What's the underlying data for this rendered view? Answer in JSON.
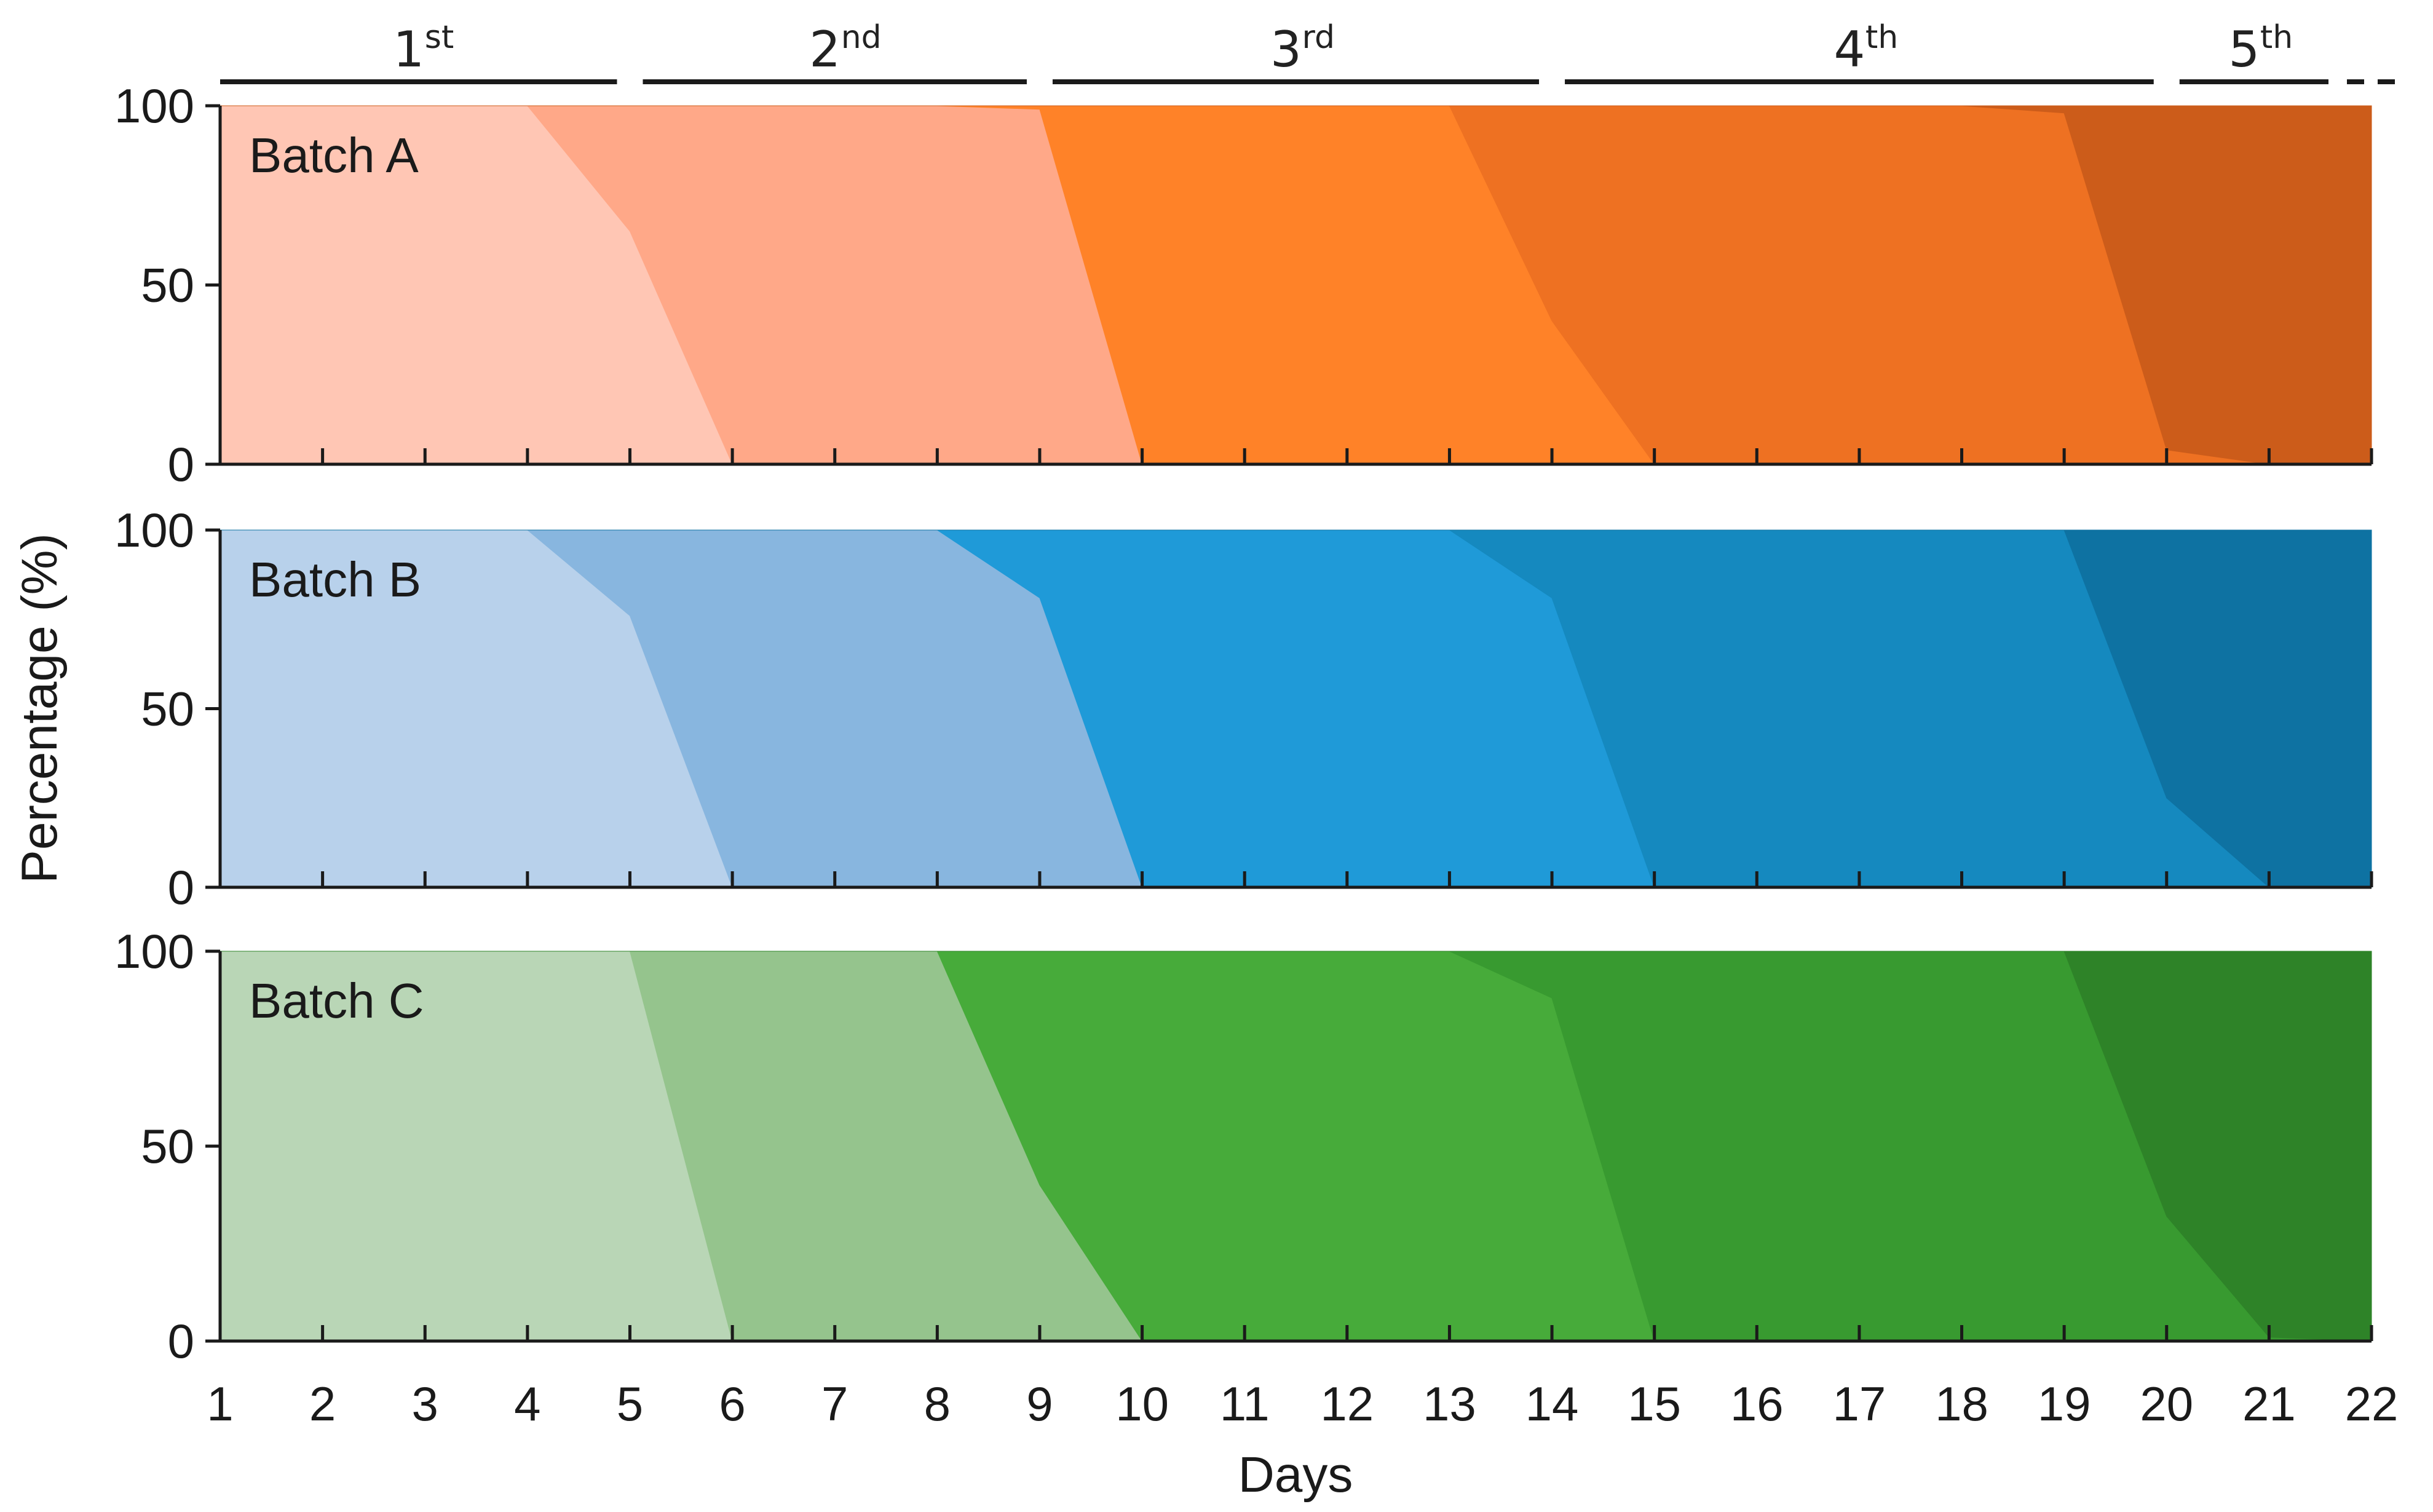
{
  "chart_data": {
    "type": "area",
    "stacked": true,
    "xlabel": "Days",
    "ylabel": "Percentage (%)",
    "x": [
      1,
      2,
      3,
      4,
      5,
      6,
      7,
      8,
      9,
      10,
      11,
      12,
      13,
      14,
      15,
      16,
      17,
      18,
      19,
      20,
      21,
      22
    ],
    "xlim": [
      1,
      22
    ],
    "ylim": [
      0,
      100
    ],
    "yticks": [
      0,
      50,
      100
    ],
    "grid": false,
    "stages": [
      {
        "label": "1",
        "suffix": "st",
        "from": 1,
        "to": 5
      },
      {
        "label": "2",
        "suffix": "nd",
        "from": 5,
        "to": 9
      },
      {
        "label": "3",
        "suffix": "rd",
        "from": 9,
        "to": 14
      },
      {
        "label": "4",
        "suffix": "th",
        "from": 14,
        "to": 20
      },
      {
        "label": "5",
        "suffix": "th",
        "from": 20,
        "to": 22,
        "continues": true
      }
    ],
    "panels": [
      {
        "label": "Batch A",
        "colors": [
          "#ffc6b4",
          "#ffa888",
          "#ff8228",
          "#ee7122",
          "#cc5c1a"
        ],
        "layers": [
          [
            100,
            100,
            100,
            100,
            65,
            0,
            0,
            0,
            0,
            0,
            0,
            0,
            0,
            0,
            0,
            0,
            0,
            0,
            0,
            0,
            0,
            0
          ],
          [
            0,
            0,
            0,
            0,
            35,
            100,
            100,
            100,
            99,
            0,
            0,
            0,
            0,
            0,
            0,
            0,
            0,
            0,
            0,
            0,
            0,
            0
          ],
          [
            0,
            0,
            0,
            0,
            0,
            0,
            0,
            0,
            1,
            100,
            100,
            100,
            100,
            40,
            0,
            0,
            0,
            0,
            0,
            0,
            0,
            0
          ],
          [
            0,
            0,
            0,
            0,
            0,
            0,
            0,
            0,
            0,
            0,
            0,
            0,
            0,
            60,
            100,
            100,
            100,
            100,
            98,
            4,
            0,
            0
          ],
          [
            0,
            0,
            0,
            0,
            0,
            0,
            0,
            0,
            0,
            0,
            0,
            0,
            0,
            0,
            0,
            0,
            0,
            0,
            2,
            96,
            100,
            100
          ]
        ]
      },
      {
        "label": "Batch B",
        "colors": [
          "#b8d1eb",
          "#88b6df",
          "#1f9ad8",
          "#1589bf",
          "#0e72a2"
        ],
        "layers": [
          [
            100,
            100,
            100,
            100,
            76,
            0,
            0,
            0,
            0,
            0,
            0,
            0,
            0,
            0,
            0,
            0,
            0,
            0,
            0,
            0,
            0,
            0
          ],
          [
            0,
            0,
            0,
            0,
            24,
            100,
            100,
            100,
            81,
            0,
            0,
            0,
            0,
            0,
            0,
            0,
            0,
            0,
            0,
            0,
            0,
            0
          ],
          [
            0,
            0,
            0,
            0,
            0,
            0,
            0,
            0,
            19,
            100,
            100,
            100,
            100,
            81,
            0,
            0,
            0,
            0,
            0,
            0,
            0,
            0
          ],
          [
            0,
            0,
            0,
            0,
            0,
            0,
            0,
            0,
            0,
            0,
            0,
            0,
            0,
            19,
            100,
            100,
            100,
            100,
            100,
            25,
            0,
            0
          ],
          [
            0,
            0,
            0,
            0,
            0,
            0,
            0,
            0,
            0,
            0,
            0,
            0,
            0,
            0,
            0,
            0,
            0,
            0,
            0,
            75,
            100,
            100
          ]
        ]
      },
      {
        "label": "Batch C",
        "colors": [
          "#b9d6b6",
          "#95c48d",
          "#47ab3a",
          "#389a30",
          "#2e8328"
        ],
        "layers": [
          [
            100,
            100,
            100,
            100,
            100,
            0,
            0,
            0,
            0,
            0,
            0,
            0,
            0,
            0,
            0,
            0,
            0,
            0,
            0,
            0,
            0,
            0
          ],
          [
            0,
            0,
            0,
            0,
            0,
            100,
            100,
            100,
            40,
            0,
            0,
            0,
            0,
            0,
            0,
            0,
            0,
            0,
            0,
            0,
            0,
            0
          ],
          [
            0,
            0,
            0,
            0,
            0,
            0,
            0,
            0,
            60,
            100,
            100,
            100,
            100,
            88,
            0,
            0,
            0,
            0,
            0,
            0,
            0,
            0
          ],
          [
            0,
            0,
            0,
            0,
            0,
            0,
            0,
            0,
            0,
            0,
            0,
            0,
            0,
            12,
            100,
            100,
            100,
            100,
            100,
            32,
            1,
            0
          ],
          [
            0,
            0,
            0,
            0,
            0,
            0,
            0,
            0,
            0,
            0,
            0,
            0,
            0,
            0,
            0,
            0,
            0,
            0,
            0,
            68,
            99,
            100
          ]
        ]
      }
    ]
  }
}
